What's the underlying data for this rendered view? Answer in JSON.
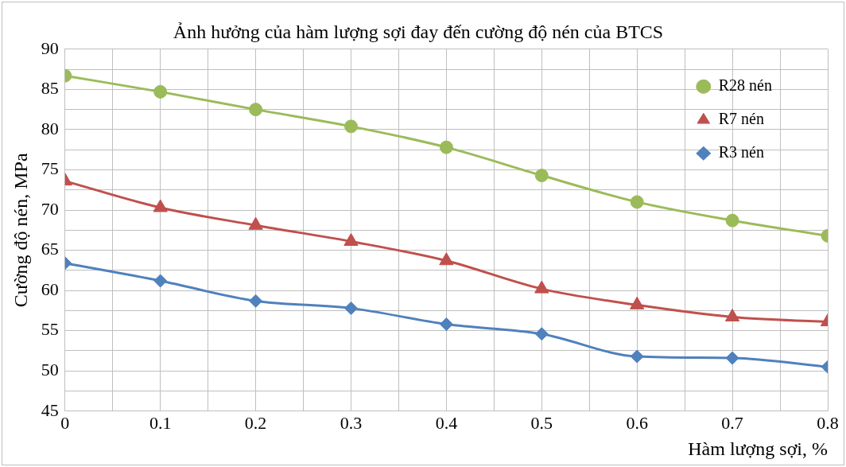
{
  "chart_data": {
    "type": "line",
    "title": "Ảnh hưởng của hàm lượng sợi đay đến cường độ nén của BTCS",
    "xlabel": "Hàm lượng sợi, %",
    "ylabel": "Cường độ nén, MPa",
    "x": [
      0,
      0.1,
      0.2,
      0.3,
      0.4,
      0.5,
      0.6,
      0.7,
      0.8
    ],
    "series": [
      {
        "name": "R28 nén",
        "color": "#9bbb59",
        "marker": "circle",
        "values": [
          86.7,
          84.7,
          82.5,
          80.4,
          77.8,
          74.3,
          71.0,
          68.7,
          66.8
        ]
      },
      {
        "name": "R7 nén",
        "color": "#c0504d",
        "marker": "triangle",
        "values": [
          73.6,
          70.3,
          68.1,
          66.1,
          63.7,
          60.2,
          58.2,
          56.7,
          56.1
        ]
      },
      {
        "name": "R3 nén",
        "color": "#4f81bd",
        "marker": "diamond",
        "values": [
          63.4,
          61.2,
          58.7,
          57.8,
          55.8,
          54.6,
          51.8,
          51.6,
          50.5
        ]
      }
    ],
    "xlim": [
      0,
      0.8
    ],
    "xticks": [
      0,
      {
        "value": 0.05,
        "label": null
      },
      0.1,
      {
        "value": 0.15,
        "label": null
      },
      0.2,
      {
        "value": 0.25,
        "label": null
      },
      0.3,
      {
        "value": 0.35,
        "label": null
      },
      0.4,
      {
        "value": 0.45,
        "label": null
      },
      0.5,
      {
        "value": 0.55,
        "label": null
      },
      0.6,
      {
        "value": 0.65,
        "label": null
      },
      0.7,
      {
        "value": 0.75,
        "label": null
      },
      0.8
    ],
    "ylim": [
      45,
      90
    ],
    "yticks": [
      45,
      {
        "value": 47.5,
        "label": null
      },
      50,
      {
        "value": 52.5,
        "label": null
      },
      55,
      {
        "value": 57.5,
        "label": null
      },
      60,
      {
        "value": 62.5,
        "label": null
      },
      65,
      {
        "value": 67.5,
        "label": null
      },
      70,
      {
        "value": 72.5,
        "label": null
      },
      75,
      {
        "value": 77.5,
        "label": null
      },
      80,
      {
        "value": 82.5,
        "label": null
      },
      85,
      {
        "value": 87.5,
        "label": null
      },
      90
    ],
    "grid": true,
    "legend": "top right",
    "line_style": "solid"
  }
}
